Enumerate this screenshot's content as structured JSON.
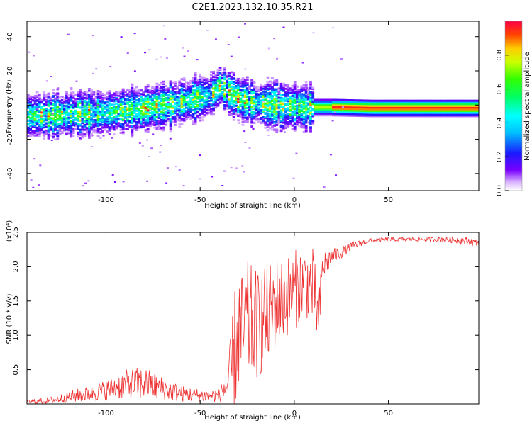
{
  "page": {
    "title": "C2E1.2023.132.10.35.R21"
  },
  "chart_data": [
    {
      "type": "heatmap",
      "title": "C2E1.2023.132.10.35.R21",
      "xlabel": "Height of straight line (km)",
      "ylabel": "Frequency (Hz)",
      "xlim": [
        -142,
        98
      ],
      "ylim": [
        -50,
        49
      ],
      "xticks": [
        -100,
        -50,
        0,
        50
      ],
      "yticks": [
        -40,
        -20,
        0,
        20,
        40
      ],
      "grid": false,
      "colorbar": {
        "label": "Normalized spectral amplitude",
        "range": [
          0.0,
          1.0
        ],
        "ticks": [
          "0.0",
          "0.2",
          "0.4",
          "0.6",
          "0.8"
        ],
        "colormap": "rainbow (white-purple-blue-cyan-green-yellow-red)"
      },
      "ridge": {
        "description": "frequency of peak spectral amplitude vs height",
        "x": [
          -142,
          -120,
          -100,
          -80,
          -60,
          -45,
          -40,
          -30,
          -20,
          -10,
          0,
          10,
          20,
          40,
          60,
          80,
          98
        ],
        "y": [
          -6,
          -5,
          -4,
          -2,
          2,
          6,
          11,
          4,
          1,
          0,
          -1,
          -1,
          -1,
          -1.5,
          -1.5,
          -1.5,
          -1.5
        ]
      }
    },
    {
      "type": "line",
      "xlabel": "Height of straight line (km)",
      "ylabel": "SNR (10 * v/v)",
      "y_multiplier": "(x10⁴)",
      "xlim": [
        -142,
        98
      ],
      "ylim": [
        0,
        2.5
      ],
      "xticks": [
        -100,
        -50,
        0,
        50
      ],
      "yticks": [
        0.5,
        1.0,
        1.5,
        2.0,
        2.5
      ],
      "grid": false,
      "series": [
        {
          "color": "#ee3333",
          "x": [
            -142,
            -130,
            -120,
            -110,
            -100,
            -90,
            -80,
            -70,
            -60,
            -50,
            -40,
            -35,
            -32,
            -30,
            -28,
            -25,
            -20,
            -15,
            -10,
            -5,
            0,
            5,
            10,
            13,
            15,
            20,
            25,
            30,
            40,
            50,
            60,
            70,
            80,
            90,
            98
          ],
          "y": [
            0.03,
            0.05,
            0.1,
            0.15,
            0.2,
            0.28,
            0.3,
            0.22,
            0.15,
            0.12,
            0.12,
            0.3,
            0.7,
            1.1,
            1.0,
            1.2,
            1.15,
            1.25,
            1.45,
            1.55,
            1.65,
            1.8,
            1.7,
            1.2,
            2.0,
            2.15,
            2.2,
            2.3,
            2.38,
            2.4,
            2.4,
            2.4,
            2.4,
            2.38,
            2.35
          ],
          "noise_amplitude": [
            0.03,
            0.05,
            0.08,
            0.12,
            0.15,
            0.22,
            0.25,
            0.18,
            0.12,
            0.1,
            0.1,
            0.3,
            0.9,
            1.0,
            0.9,
            0.9,
            0.8,
            0.8,
            0.7,
            0.6,
            0.6,
            0.5,
            0.6,
            0.4,
            0.25,
            0.12,
            0.08,
            0.06,
            0.03,
            0.03,
            0.03,
            0.03,
            0.04,
            0.06,
            0.05
          ]
        }
      ]
    }
  ]
}
